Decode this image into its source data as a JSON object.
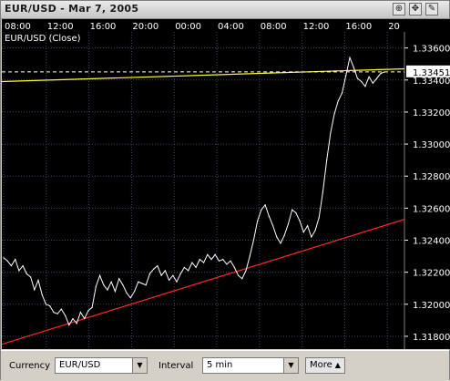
{
  "window": {
    "title": "EUR/USD - Mar 7, 2005",
    "buttons": {
      "zoom_icon": "zoom-icon",
      "move_icon": "move-icon",
      "edit_icon": "pencil-icon"
    }
  },
  "chart_data": {
    "type": "line",
    "title": "EUR/USD (Close)",
    "time_ticks": [
      "08:00",
      "12:00",
      "16:00",
      "20:00",
      "00:00",
      "04:00",
      "08:00",
      "12:00",
      "16:00",
      "20"
    ],
    "y_ticks": [
      "1.33600",
      "1.33400",
      "1.33200",
      "1.33000",
      "1.32800",
      "1.32600",
      "1.32400",
      "1.32200",
      "1.32000",
      "1.31800"
    ],
    "ylim": [
      1.3172,
      1.3378
    ],
    "last_price": "1.33451",
    "last_price_value": 1.33451,
    "grid": true,
    "series": [
      {
        "color": "#ffffff",
        "values": [
          1.3229,
          1.3227,
          1.3224,
          1.3228,
          1.3221,
          1.3224,
          1.3219,
          1.3217,
          1.3209,
          1.3215,
          1.3206,
          1.32,
          1.3199,
          1.3195,
          1.3194,
          1.3197,
          1.3193,
          1.3187,
          1.3191,
          1.3188,
          1.3195,
          1.3191,
          1.3196,
          1.3198,
          1.3211,
          1.3218,
          1.3212,
          1.3209,
          1.3214,
          1.3208,
          1.3216,
          1.3212,
          1.3207,
          1.3204,
          1.3208,
          1.3214,
          1.3213,
          1.3212,
          1.3219,
          1.3222,
          1.3224,
          1.3218,
          1.3221,
          1.3215,
          1.3218,
          1.3214,
          1.3219,
          1.3223,
          1.3221,
          1.3226,
          1.3223,
          1.3228,
          1.3226,
          1.3231,
          1.3228,
          1.3231,
          1.3227,
          1.3228,
          1.3225,
          1.3227,
          1.3223,
          1.3218,
          1.3216,
          1.3221,
          1.323,
          1.324,
          1.3252,
          1.3259,
          1.3262,
          1.3255,
          1.3249,
          1.3242,
          1.3238,
          1.3243,
          1.325,
          1.3259,
          1.3257,
          1.3252,
          1.3245,
          1.3249,
          1.3242,
          1.3246,
          1.3254,
          1.327,
          1.329,
          1.3307,
          1.3319,
          1.3327,
          1.3332,
          1.3343,
          1.3354,
          1.3348,
          1.3341,
          1.3339,
          1.3336,
          1.3342,
          1.3338,
          1.3341,
          1.3344,
          1.3345
        ]
      },
      {
        "name": "",
        "color": "#ffff33",
        "values": [
          1.3339,
          1.3347
        ]
      },
      {
        "name": "",
        "color": "#ff2a2a",
        "values": [
          1.3175,
          1.3253
        ]
      }
    ]
  },
  "controls": {
    "currency_label": "Currency",
    "currency_value": "EUR/USD",
    "interval_label": "Interval",
    "interval_value": "5 min",
    "more_label": "More",
    "dropdown_icon": "chevron-down-icon",
    "more_icon": "triangle-up-icon"
  },
  "colors": {
    "chart_bg": "#000000",
    "grid": "#3a4a6a",
    "axis_text": "#ffffff",
    "price_line": "#ffffff",
    "resistance_line": "#ffff33",
    "support_line": "#ff2a2a"
  }
}
